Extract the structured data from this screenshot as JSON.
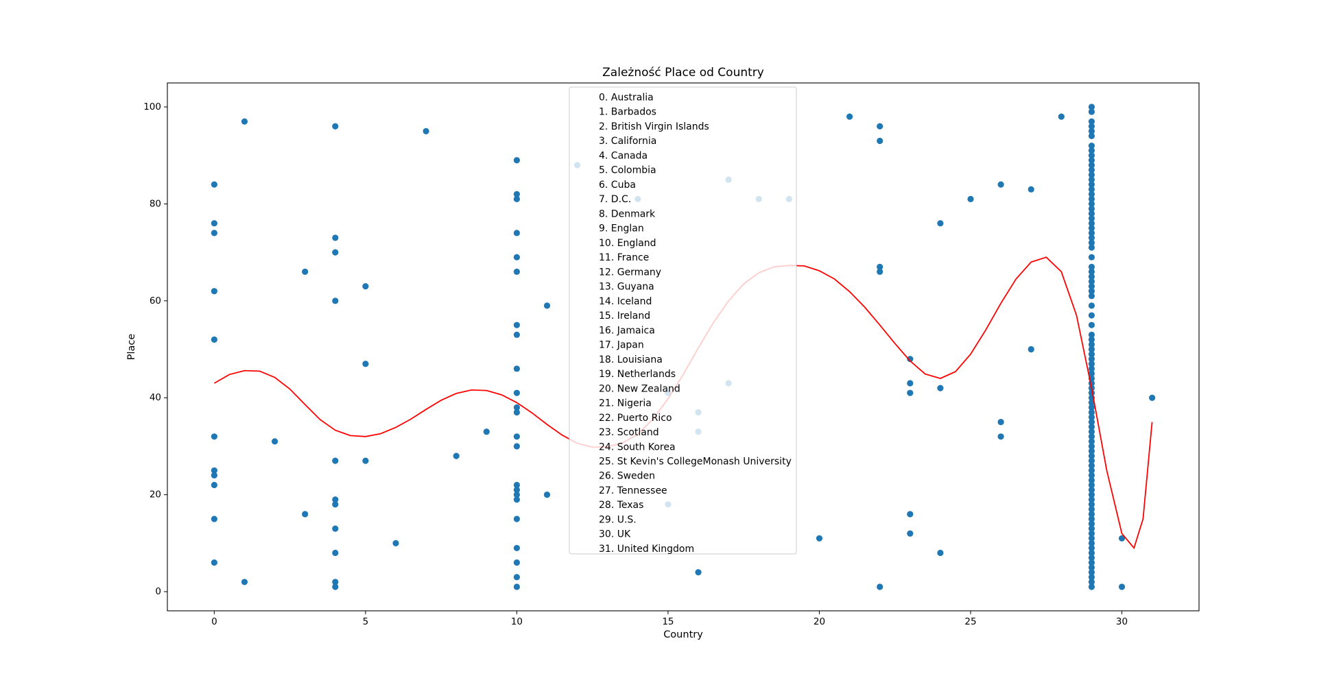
{
  "chart_data": {
    "type": "scatter",
    "title": "Zależność Place od Country",
    "xlabel": "Country",
    "ylabel": "Place",
    "xlim": [
      -1.55,
      32.55
    ],
    "ylim": [
      -3.95,
      104.95
    ],
    "xticks": [
      0,
      5,
      10,
      15,
      20,
      25,
      30
    ],
    "yticks": [
      0,
      20,
      40,
      60,
      80,
      100
    ],
    "grid": false,
    "legend_position": "upper-center",
    "colors": {
      "points": "#1f77b4",
      "curve": "#ff0000"
    },
    "legend_entries": [
      "0. Australia",
      "1. Barbados",
      "2. British Virgin Islands",
      "3. California",
      "4. Canada",
      "5. Colombia",
      "6. Cuba",
      "7. D.C.",
      "8. Denmark",
      "9. Englan",
      "10. England",
      "11. France",
      "12. Germany",
      "13. Guyana",
      "14. Iceland",
      "15. Ireland",
      "16. Jamaica",
      "17. Japan",
      "18. Louisiana",
      "19. Netherlands",
      "20. New Zealand",
      "21. Nigeria",
      "22. Puerto Rico",
      "23. Scotland",
      "24. South Korea",
      "25. St Kevin's CollegeMonash University",
      "26. Sweden",
      "27. Tennessee",
      "28. Texas",
      "29. U.S.",
      "30. UK",
      "31. United Kingdom"
    ],
    "points": [
      [
        0,
        84
      ],
      [
        0,
        76
      ],
      [
        0,
        74
      ],
      [
        0,
        62
      ],
      [
        0,
        52
      ],
      [
        0,
        32
      ],
      [
        0,
        25
      ],
      [
        0,
        24
      ],
      [
        0,
        22
      ],
      [
        0,
        15
      ],
      [
        0,
        6
      ],
      [
        1,
        97
      ],
      [
        1,
        2
      ],
      [
        2,
        31
      ],
      [
        3,
        66
      ],
      [
        3,
        16
      ],
      [
        4,
        96
      ],
      [
        4,
        73
      ],
      [
        4,
        70
      ],
      [
        4,
        60
      ],
      [
        4,
        27
      ],
      [
        4,
        19
      ],
      [
        4,
        18
      ],
      [
        4,
        13
      ],
      [
        4,
        8
      ],
      [
        4,
        2
      ],
      [
        4,
        1
      ],
      [
        5,
        63
      ],
      [
        5,
        47
      ],
      [
        5,
        27
      ],
      [
        6,
        10
      ],
      [
        7,
        95
      ],
      [
        8,
        28
      ],
      [
        9,
        33
      ],
      [
        10,
        89
      ],
      [
        10,
        82
      ],
      [
        10,
        81
      ],
      [
        10,
        74
      ],
      [
        10,
        69
      ],
      [
        10,
        66
      ],
      [
        10,
        55
      ],
      [
        10,
        53
      ],
      [
        10,
        46
      ],
      [
        10,
        41
      ],
      [
        10,
        38
      ],
      [
        10,
        37
      ],
      [
        10,
        32
      ],
      [
        10,
        30
      ],
      [
        10,
        22
      ],
      [
        10,
        21
      ],
      [
        10,
        20
      ],
      [
        10,
        19
      ],
      [
        10,
        15
      ],
      [
        10,
        9
      ],
      [
        10,
        6
      ],
      [
        10,
        3
      ],
      [
        10,
        1
      ],
      [
        11,
        59
      ],
      [
        11,
        20
      ],
      [
        12,
        88
      ],
      [
        14,
        81
      ],
      [
        15,
        41
      ],
      [
        15,
        18
      ],
      [
        16,
        37
      ],
      [
        16,
        33
      ],
      [
        16,
        4
      ],
      [
        17,
        85
      ],
      [
        17,
        43
      ],
      [
        18,
        81
      ],
      [
        19,
        81
      ],
      [
        20,
        11
      ],
      [
        21,
        98
      ],
      [
        22,
        96
      ],
      [
        22,
        93
      ],
      [
        22,
        67
      ],
      [
        22,
        66
      ],
      [
        22,
        1
      ],
      [
        23,
        48
      ],
      [
        23,
        43
      ],
      [
        23,
        41
      ],
      [
        23,
        16
      ],
      [
        23,
        12
      ],
      [
        24,
        76
      ],
      [
        24,
        42
      ],
      [
        24,
        8
      ],
      [
        25,
        81
      ],
      [
        26,
        84
      ],
      [
        26,
        35
      ],
      [
        26,
        32
      ],
      [
        27,
        83
      ],
      [
        27,
        50
      ],
      [
        28,
        98
      ],
      [
        29,
        100
      ],
      [
        29,
        99
      ],
      [
        29,
        97
      ],
      [
        29,
        96
      ],
      [
        29,
        95
      ],
      [
        29,
        94
      ],
      [
        29,
        92
      ],
      [
        29,
        91
      ],
      [
        29,
        90
      ],
      [
        29,
        89
      ],
      [
        29,
        88
      ],
      [
        29,
        87
      ],
      [
        29,
        86
      ],
      [
        29,
        85
      ],
      [
        29,
        84
      ],
      [
        29,
        83
      ],
      [
        29,
        82
      ],
      [
        29,
        81
      ],
      [
        29,
        80
      ],
      [
        29,
        79
      ],
      [
        29,
        78
      ],
      [
        29,
        77
      ],
      [
        29,
        76
      ],
      [
        29,
        75
      ],
      [
        29,
        74
      ],
      [
        29,
        73
      ],
      [
        29,
        72
      ],
      [
        29,
        71
      ],
      [
        29,
        69
      ],
      [
        29,
        67
      ],
      [
        29,
        66
      ],
      [
        29,
        65
      ],
      [
        29,
        64
      ],
      [
        29,
        63
      ],
      [
        29,
        62
      ],
      [
        29,
        61
      ],
      [
        29,
        59
      ],
      [
        29,
        57
      ],
      [
        29,
        55
      ],
      [
        29,
        53
      ],
      [
        29,
        52
      ],
      [
        29,
        51
      ],
      [
        29,
        50
      ],
      [
        29,
        49
      ],
      [
        29,
        48
      ],
      [
        29,
        47
      ],
      [
        29,
        46
      ],
      [
        29,
        45
      ],
      [
        29,
        44
      ],
      [
        29,
        43
      ],
      [
        29,
        42
      ],
      [
        29,
        41
      ],
      [
        29,
        40
      ],
      [
        29,
        39
      ],
      [
        29,
        38
      ],
      [
        29,
        37
      ],
      [
        29,
        36
      ],
      [
        29,
        35
      ],
      [
        29,
        34
      ],
      [
        29,
        33
      ],
      [
        29,
        32
      ],
      [
        29,
        31
      ],
      [
        29,
        30
      ],
      [
        29,
        29
      ],
      [
        29,
        28
      ],
      [
        29,
        27
      ],
      [
        29,
        26
      ],
      [
        29,
        25
      ],
      [
        29,
        24
      ],
      [
        29,
        23
      ],
      [
        29,
        22
      ],
      [
        29,
        21
      ],
      [
        29,
        20
      ],
      [
        29,
        19
      ],
      [
        29,
        18
      ],
      [
        29,
        17
      ],
      [
        29,
        16
      ],
      [
        29,
        15
      ],
      [
        29,
        14
      ],
      [
        29,
        13
      ],
      [
        29,
        12
      ],
      [
        29,
        11
      ],
      [
        29,
        10
      ],
      [
        29,
        9
      ],
      [
        29,
        8
      ],
      [
        29,
        7
      ],
      [
        29,
        6
      ],
      [
        29,
        5
      ],
      [
        29,
        4
      ],
      [
        29,
        3
      ],
      [
        29,
        2
      ],
      [
        29,
        1
      ],
      [
        30,
        11
      ],
      [
        30,
        1
      ],
      [
        31,
        40
      ]
    ],
    "curve": [
      [
        0,
        43
      ],
      [
        0.5,
        44.8
      ],
      [
        1,
        45.6
      ],
      [
        1.5,
        45.5
      ],
      [
        2,
        44.2
      ],
      [
        2.5,
        41.8
      ],
      [
        3,
        38.6
      ],
      [
        3.5,
        35.5
      ],
      [
        4,
        33.3
      ],
      [
        4.5,
        32.2
      ],
      [
        5,
        32
      ],
      [
        5.5,
        32.6
      ],
      [
        6,
        33.9
      ],
      [
        6.5,
        35.6
      ],
      [
        7,
        37.6
      ],
      [
        7.5,
        39.5
      ],
      [
        8,
        40.9
      ],
      [
        8.5,
        41.6
      ],
      [
        9,
        41.5
      ],
      [
        9.5,
        40.6
      ],
      [
        10,
        39
      ],
      [
        10.5,
        36.9
      ],
      [
        11,
        34.5
      ],
      [
        11.5,
        32.3
      ],
      [
        12,
        30.6
      ],
      [
        12.5,
        29.8
      ],
      [
        13,
        29.9
      ],
      [
        13.5,
        30.7
      ],
      [
        14,
        32.5
      ],
      [
        14.5,
        35.6
      ],
      [
        15,
        39.8
      ],
      [
        15.5,
        44.8
      ],
      [
        16,
        50.3
      ],
      [
        16.5,
        55.5
      ],
      [
        17,
        60
      ],
      [
        17.5,
        63.5
      ],
      [
        18,
        65.8
      ],
      [
        18.5,
        67
      ],
      [
        19,
        67.3
      ],
      [
        19.5,
        67.2
      ],
      [
        20,
        66.2
      ],
      [
        20.5,
        64.5
      ],
      [
        21,
        61.9
      ],
      [
        21.5,
        58.7
      ],
      [
        22,
        55
      ],
      [
        22.5,
        51.2
      ],
      [
        23,
        47.6
      ],
      [
        23.5,
        44.9
      ],
      [
        24,
        44
      ],
      [
        24.5,
        45.4
      ],
      [
        25,
        49
      ],
      [
        25.5,
        54
      ],
      [
        26,
        59.5
      ],
      [
        26.5,
        64.5
      ],
      [
        27,
        68
      ],
      [
        27.5,
        69
      ],
      [
        28,
        66
      ],
      [
        28.5,
        57
      ],
      [
        29,
        42
      ],
      [
        29.5,
        25
      ],
      [
        30,
        12
      ],
      [
        30.4,
        9
      ],
      [
        30.7,
        15
      ],
      [
        31,
        35
      ]
    ]
  }
}
